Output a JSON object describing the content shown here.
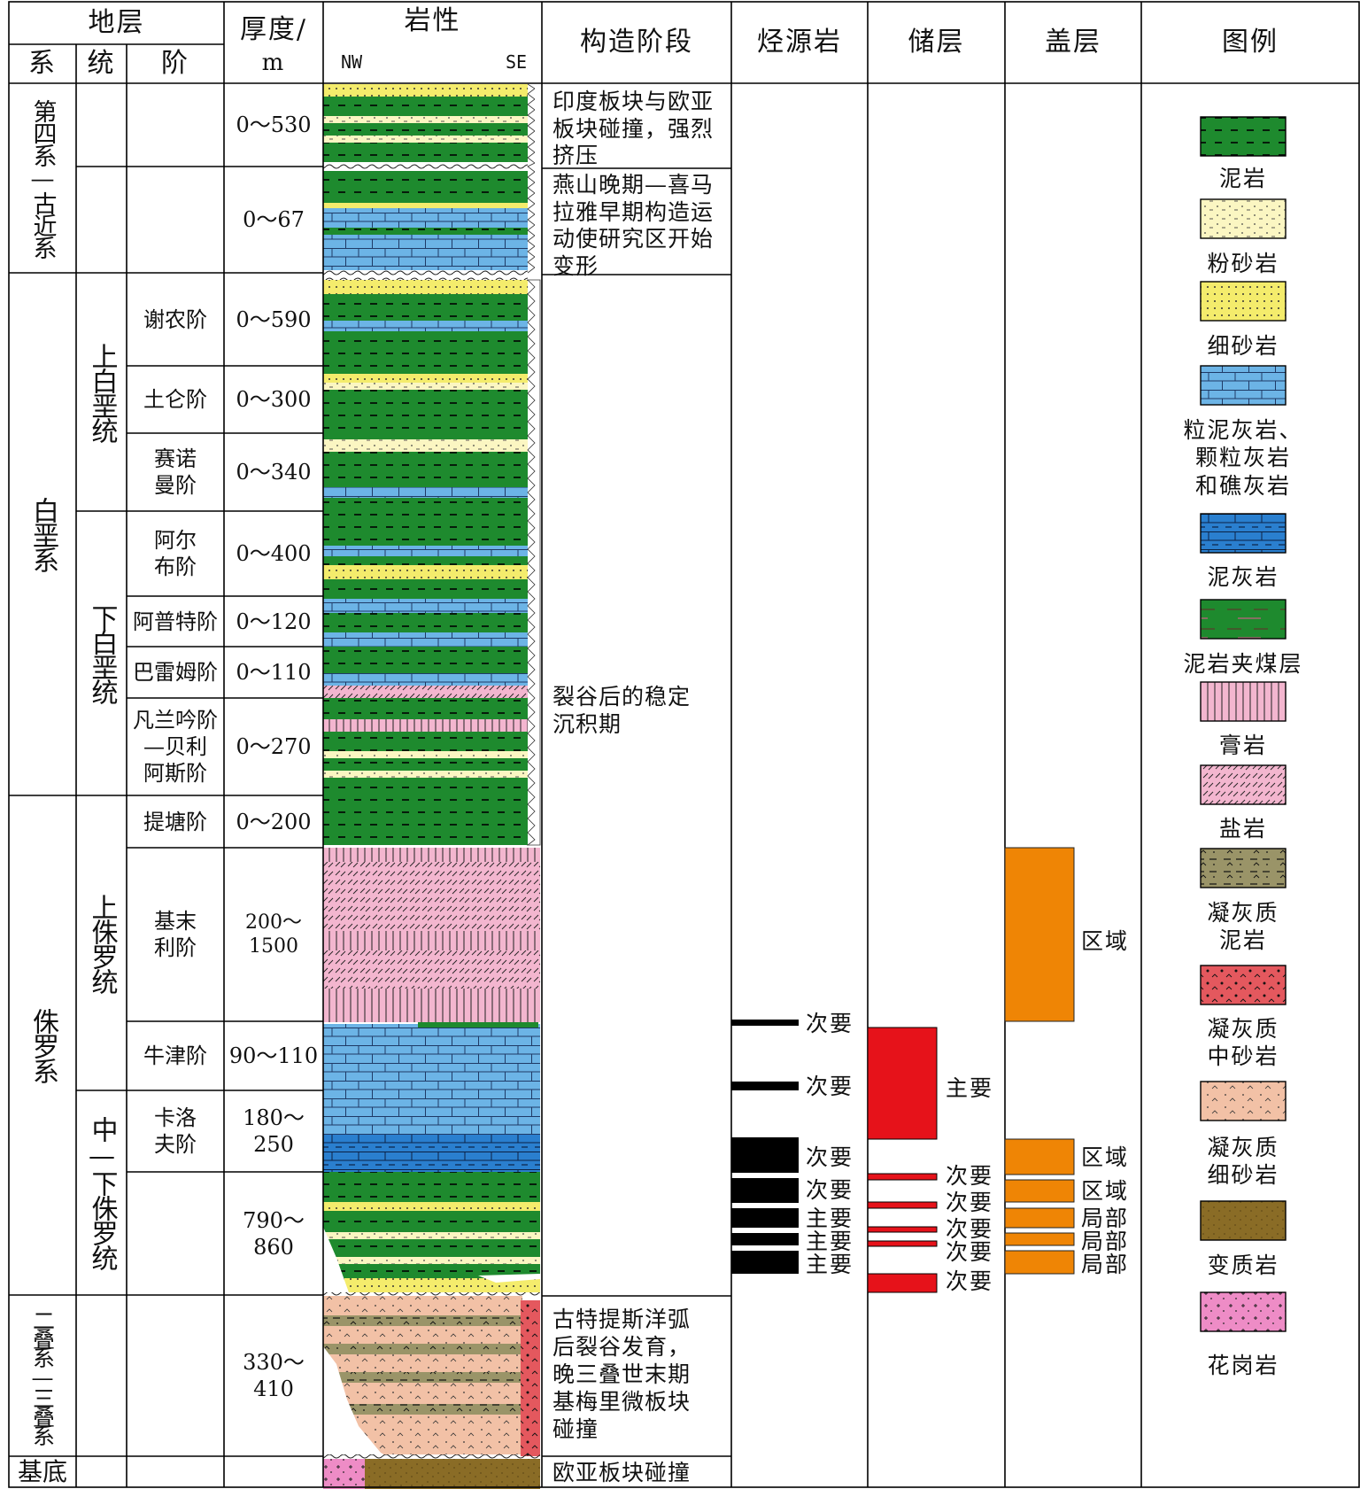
{
  "header": {
    "stratum": "地层",
    "system": "系",
    "series": "统",
    "stage": "阶",
    "thickness_line1": "厚度/",
    "thickness_line2": "m",
    "lithology": "岩性",
    "nw": "NW",
    "se": "SE",
    "tectonic_stage": "构造阶段",
    "source_rock": "烃源岩",
    "reservoir": "储层",
    "cap_rock": "盖层",
    "legend": "图例"
  },
  "systems": {
    "quaternary_paleogene": "第四系—古近系",
    "cretaceous": "白垩系",
    "jurassic": "侏罗系",
    "permian_triassic": "二叠系—三叠系",
    "basement": "基底"
  },
  "series": {
    "upper_cretaceous": "上白垩统",
    "lower_cretaceous": "下白垩统",
    "upper_jurassic": "上侏罗统",
    "middle_lower_jurassic": "中—下侏罗统"
  },
  "stages": {
    "cenomanian": "谢农阶",
    "turonian": "土仑阶",
    "cenomanian2_l1": "赛诺",
    "cenomanian2_l2": "曼阶",
    "albian_l1": "阿尔",
    "albian_l2": "布阶",
    "aptian": "阿普特阶",
    "barremian": "巴雷姆阶",
    "valanginian_l1": "凡兰吟阶",
    "valanginian_l2": "—贝利",
    "valanginian_l3": "阿斯阶",
    "tithonian": "提塘阶",
    "kimmeridgian_l1": "基末",
    "kimmeridgian_l2": "利阶",
    "oxfordian": "牛津阶",
    "callovian_l1": "卡洛",
    "callovian_l2": "夫阶"
  },
  "thickness": {
    "t1": "0～530",
    "t2": "0～67",
    "t3": "0～590",
    "t4": "0～300",
    "t5": "0～340",
    "t6": "0～400",
    "t7": "0～120",
    "t8": "0～110",
    "t9": "0～270",
    "t10": "0～200",
    "t11": "200～1500",
    "t12": "90～110",
    "t13": "180～250",
    "t14": "790～860",
    "t15": "330～410"
  },
  "tectonic": {
    "s1": [
      "印度板块与欧亚",
      "板块碰撞，强烈",
      "挤压"
    ],
    "s2": [
      "燕山晚期—喜马",
      "拉雅早期构造运",
      "动使研究区开始",
      "变形"
    ],
    "s3": [
      "裂谷后的稳定",
      "沉积期"
    ],
    "s4": [
      "古特提斯洋弧",
      "后裂谷发育，",
      "晚三叠世末期",
      "基梅里微板块",
      "碰撞"
    ],
    "s5": [
      "欧亚板块碰撞"
    ]
  },
  "source_rock": {
    "b1": "次要",
    "b2": "次要",
    "b3": "次要",
    "b4": "次要",
    "b5": "主要",
    "b6": "主要",
    "b7": "主要"
  },
  "reservoir": {
    "b1": "主要",
    "b2": "次要",
    "b3": "次要",
    "b4": "次要",
    "b5": "次要",
    "b6": "次要"
  },
  "cap_rock": {
    "b1": "区域",
    "b2": "区域",
    "b3": "区域",
    "b4": "局部",
    "b5": "局部",
    "b6": "局部"
  },
  "legend_items": {
    "mudstone": "泥岩",
    "siltstone": "粉砂岩",
    "fine_sandstone": "细砂岩",
    "grainstone_l1": "粒泥灰岩、",
    "grainstone_l2": "颗粒灰岩",
    "grainstone_l3": "和礁灰岩",
    "marl": "泥灰岩",
    "coal_mudstone": "泥岩夹煤层",
    "gypsum": "膏岩",
    "salt": "盐岩",
    "tuff_mud_l1": "凝灰质",
    "tuff_mud_l2": "泥岩",
    "tuff_medsand_l1": "凝灰质",
    "tuff_medsand_l2": "中砂岩",
    "tuff_finesand_l1": "凝灰质",
    "tuff_finesand_l2": "细砂岩",
    "metamorphic": "变质岩",
    "granite": "花岗岩"
  },
  "colors": {
    "mudstone": "#1e8a2e",
    "siltstone": "#fbf6c2",
    "fine_sandstone": "#f4ec6c",
    "limestone": "#6cb4e6",
    "marl": "#2a7fcf",
    "gypsum": "#f3b6cf",
    "salt": "#f3b6cf",
    "tuff_mud": "#9a9468",
    "tuff_medsand": "#e4585e",
    "tuff_finesand": "#f2c1a6",
    "metamorphic": "#8a6c26",
    "granite": "#ee8cc6",
    "source": "#000000",
    "reservoir": "#e6121a",
    "cap": "#ef8505"
  }
}
